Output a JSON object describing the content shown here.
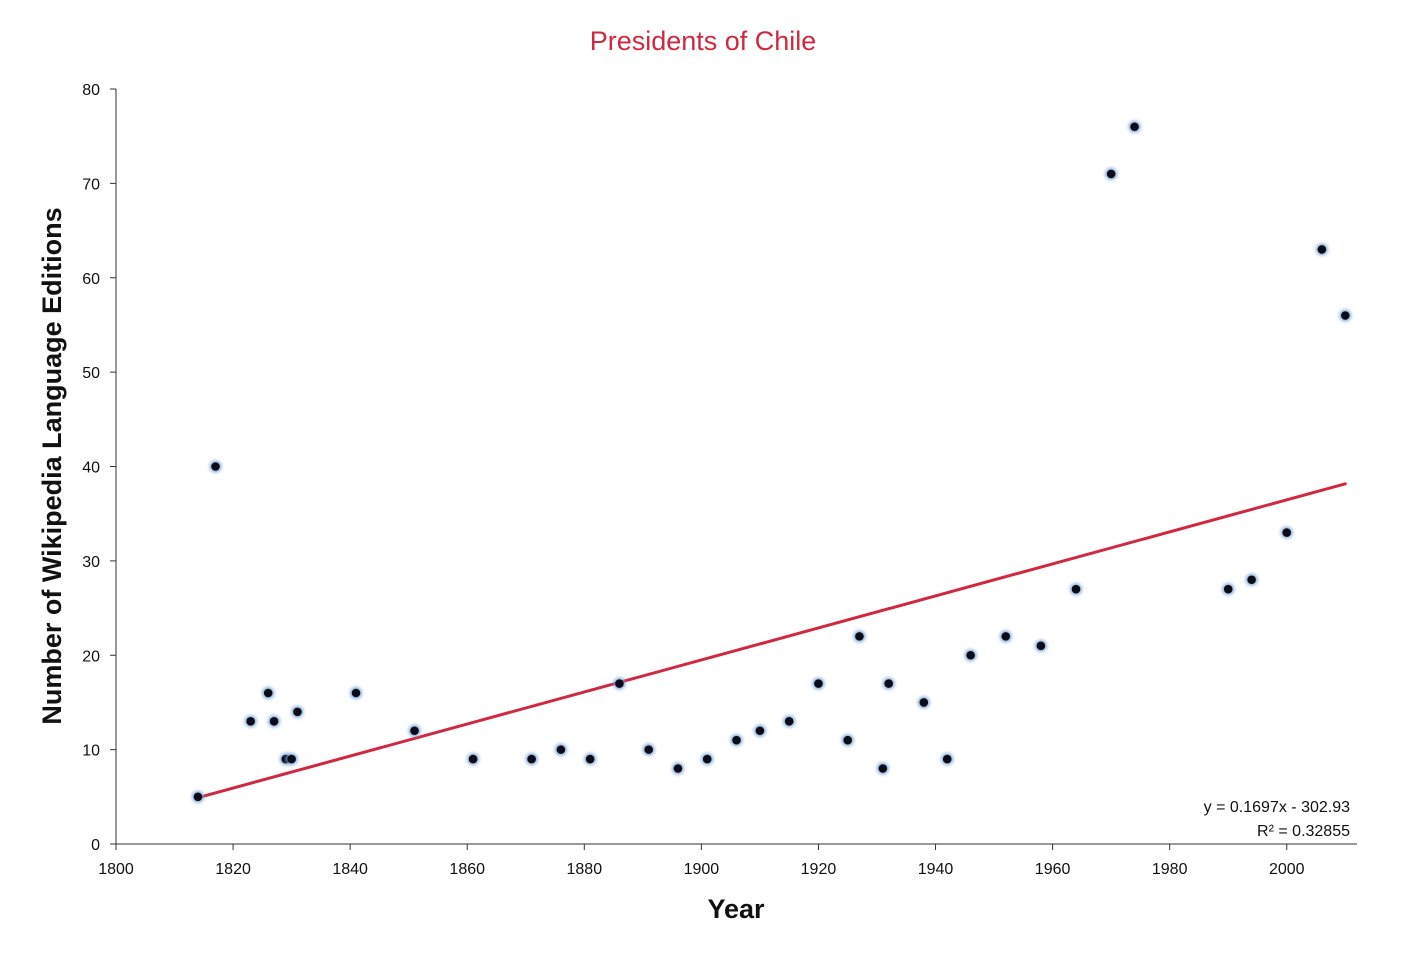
{
  "chart_data": {
    "type": "scatter",
    "title": "Presidents of Chile",
    "xlabel": "Year",
    "ylabel": "Number of Wikipedia Language Editions",
    "xlim": [
      1800,
      2012
    ],
    "ylim": [
      0,
      80
    ],
    "x_ticks": [
      1800,
      1820,
      1840,
      1860,
      1880,
      1900,
      1920,
      1940,
      1960,
      1980,
      2000
    ],
    "y_ticks": [
      0,
      10,
      20,
      30,
      40,
      50,
      60,
      70,
      80
    ],
    "grid": false,
    "legend": "none",
    "series": [
      {
        "points": [
          {
            "x": 1814,
            "y": 5
          },
          {
            "x": 1817,
            "y": 40
          },
          {
            "x": 1823,
            "y": 13
          },
          {
            "x": 1826,
            "y": 16
          },
          {
            "x": 1827,
            "y": 13
          },
          {
            "x": 1829,
            "y": 9
          },
          {
            "x": 1830,
            "y": 9
          },
          {
            "x": 1831,
            "y": 14
          },
          {
            "x": 1841,
            "y": 16
          },
          {
            "x": 1851,
            "y": 12
          },
          {
            "x": 1861,
            "y": 9
          },
          {
            "x": 1871,
            "y": 9
          },
          {
            "x": 1876,
            "y": 10
          },
          {
            "x": 1881,
            "y": 9
          },
          {
            "x": 1886,
            "y": 17
          },
          {
            "x": 1891,
            "y": 10
          },
          {
            "x": 1896,
            "y": 8
          },
          {
            "x": 1901,
            "y": 9
          },
          {
            "x": 1906,
            "y": 11
          },
          {
            "x": 1910,
            "y": 12
          },
          {
            "x": 1915,
            "y": 13
          },
          {
            "x": 1920,
            "y": 17
          },
          {
            "x": 1925,
            "y": 11
          },
          {
            "x": 1927,
            "y": 22
          },
          {
            "x": 1931,
            "y": 8
          },
          {
            "x": 1932,
            "y": 17
          },
          {
            "x": 1938,
            "y": 15
          },
          {
            "x": 1942,
            "y": 9
          },
          {
            "x": 1946,
            "y": 20
          },
          {
            "x": 1952,
            "y": 22
          },
          {
            "x": 1958,
            "y": 21
          },
          {
            "x": 1964,
            "y": 27
          },
          {
            "x": 1970,
            "y": 71
          },
          {
            "x": 1974,
            "y": 76
          },
          {
            "x": 1990,
            "y": 27
          },
          {
            "x": 1994,
            "y": 28
          },
          {
            "x": 2000,
            "y": 33
          },
          {
            "x": 2006,
            "y": 63
          },
          {
            "x": 2010,
            "y": 56
          }
        ]
      }
    ],
    "trendline": {
      "type": "linear",
      "slope": 0.1697,
      "intercept": -302.93,
      "x_range": [
        1814,
        2010
      ],
      "equation_label": "y = 0.1697x - 302.93",
      "r2_label": "R² = 0.32855"
    },
    "colors": {
      "title": "#d0283e",
      "trendline": "#d0283e",
      "marker_fill": "#0b0b1a",
      "marker_glow": "#7aa4d8",
      "axis": "#333333"
    }
  }
}
